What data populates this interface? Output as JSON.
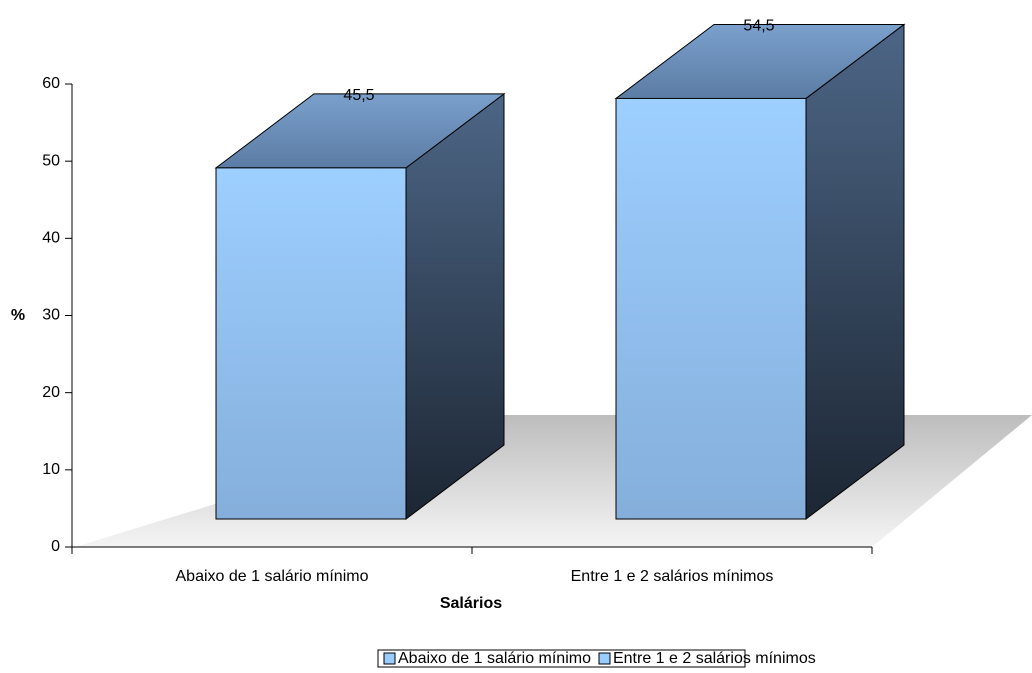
{
  "chart_data": {
    "type": "bar3d",
    "x_label": "Salários",
    "y_label": "%",
    "categories": [
      "Abaixo de 1 salário mínimo",
      "Entre 1 e 2 salários mínimos"
    ],
    "values": [
      45.5,
      54.5
    ],
    "value_labels": [
      "45,5",
      "54,5"
    ],
    "color": "#99ccff",
    "ylim": [
      0,
      60
    ],
    "yticks": [
      0,
      10,
      20,
      30,
      40,
      50,
      60
    ]
  }
}
